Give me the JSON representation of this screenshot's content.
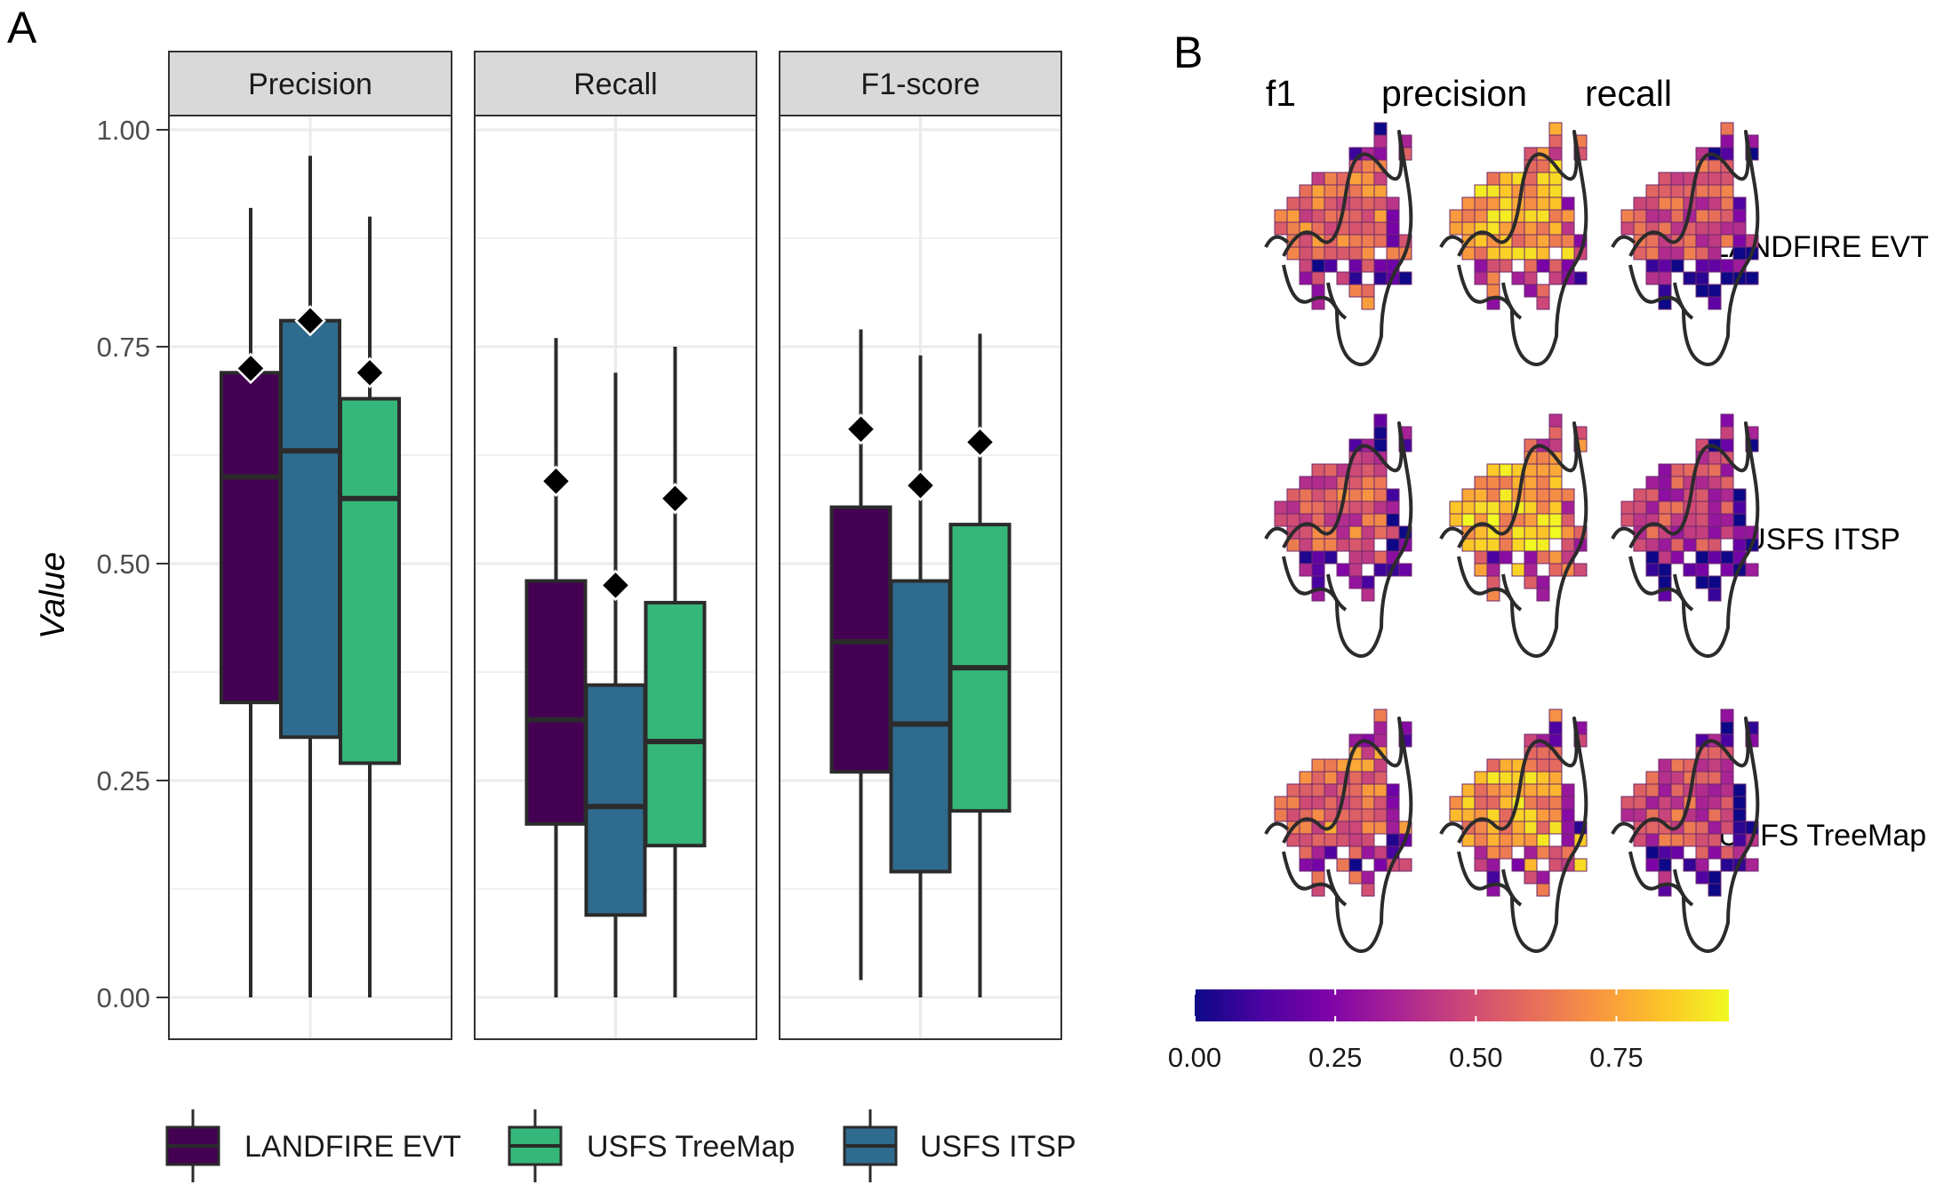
{
  "panel_labels": {
    "a": "A",
    "b": "B"
  },
  "colors": {
    "LANDFIRE EVT": "#440154",
    "USFS ITSP": "#2f6b8e",
    "USFS TreeMap": "#35b779",
    "edge": "#2b2b2b",
    "grid": "#ebebeb",
    "strip_bg": "#d9d9d9"
  },
  "chart_data": [
    {
      "type": "box",
      "ylabel": "Value",
      "xlabel": "",
      "ylim": [
        0,
        1.05
      ],
      "yticks": [
        0,
        0.25,
        0.5,
        0.75,
        1.0
      ],
      "ytick_labels": [
        "0.00",
        "0.25",
        "0.50",
        "0.75",
        "1.00"
      ],
      "facets": [
        "Precision",
        "Recall",
        "F1-score"
      ],
      "series_order_in_facet": [
        "LANDFIRE EVT",
        "USFS ITSP",
        "USFS TreeMap"
      ],
      "legend": {
        "position": "bottom",
        "entries": [
          "LANDFIRE EVT",
          "USFS TreeMap",
          "USFS ITSP"
        ]
      },
      "mean_marker": "diamond",
      "data": {
        "Precision": [
          {
            "series": "LANDFIRE EVT",
            "min": 0.0,
            "q1": 0.34,
            "median": 0.6,
            "q3": 0.72,
            "max": 0.91,
            "mean": 0.725
          },
          {
            "series": "USFS ITSP",
            "min": 0.0,
            "q1": 0.3,
            "median": 0.63,
            "q3": 0.78,
            "max": 0.97,
            "mean": 0.78
          },
          {
            "series": "USFS TreeMap",
            "min": 0.0,
            "q1": 0.27,
            "median": 0.575,
            "q3": 0.69,
            "max": 0.9,
            "mean": 0.72
          }
        ],
        "Recall": [
          {
            "series": "LANDFIRE EVT",
            "min": 0.0,
            "q1": 0.2,
            "median": 0.32,
            "q3": 0.48,
            "max": 0.76,
            "mean": 0.595
          },
          {
            "series": "USFS ITSP",
            "min": 0.0,
            "q1": 0.095,
            "median": 0.22,
            "q3": 0.36,
            "max": 0.72,
            "mean": 0.475
          },
          {
            "series": "USFS TreeMap",
            "min": 0.0,
            "q1": 0.175,
            "median": 0.295,
            "q3": 0.455,
            "max": 0.75,
            "mean": 0.575
          }
        ],
        "F1-score": [
          {
            "series": "LANDFIRE EVT",
            "min": 0.02,
            "q1": 0.26,
            "median": 0.41,
            "q3": 0.565,
            "max": 0.77,
            "mean": 0.655
          },
          {
            "series": "USFS ITSP",
            "min": 0.0,
            "q1": 0.145,
            "median": 0.315,
            "q3": 0.48,
            "max": 0.74,
            "mean": 0.59
          },
          {
            "series": "USFS TreeMap",
            "min": 0.0,
            "q1": 0.215,
            "median": 0.38,
            "q3": 0.545,
            "max": 0.765,
            "mean": 0.64
          }
        ]
      }
    },
    {
      "type": "heatmap",
      "description_type": "choropleth_small_multiples",
      "columns": [
        "f1",
        "precision",
        "recall"
      ],
      "rows": [
        "LANDFIRE EVT",
        "USFS ITSP",
        "USFS TreeMap"
      ],
      "colorbar": {
        "palette": "plasma",
        "range": [
          0,
          0.95
        ],
        "ticks": [
          0,
          0.25,
          0.5,
          0.75
        ],
        "tick_labels": [
          "0.00",
          "0.25",
          "0.50",
          "0.75"
        ]
      },
      "cell_means": {
        "LANDFIRE EVT": {
          "f1": 0.6,
          "precision": 0.75,
          "recall": 0.5
        },
        "USFS ITSP": {
          "f1": 0.55,
          "precision": 0.8,
          "recall": 0.45
        },
        "USFS TreeMap": {
          "f1": 0.62,
          "precision": 0.75,
          "recall": 0.5
        }
      }
    }
  ]
}
